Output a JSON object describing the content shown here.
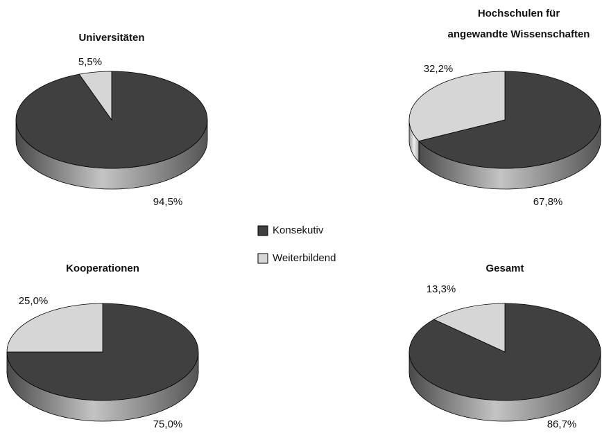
{
  "chart_data": [
    {
      "type": "pie",
      "title": "Universitäten",
      "categories": [
        "Konsekutiv",
        "Weiterbildend"
      ],
      "values": [
        94.5,
        5.5
      ],
      "value_labels": [
        "94,5%",
        "5,5%"
      ],
      "colors": [
        "#404040",
        "#d6d6d6"
      ]
    },
    {
      "type": "pie",
      "title": "Hochschulen für angewandte Wissenschaften",
      "categories": [
        "Konsekutiv",
        "Weiterbildend"
      ],
      "values": [
        67.8,
        32.2
      ],
      "value_labels": [
        "67,8%",
        "32,2%"
      ],
      "colors": [
        "#404040",
        "#d6d6d6"
      ]
    },
    {
      "type": "pie",
      "title": "Kooperationen",
      "categories": [
        "Konsekutiv",
        "Weiterbildend"
      ],
      "values": [
        75.0,
        25.0
      ],
      "value_labels": [
        "75,0%",
        "25,0%"
      ],
      "colors": [
        "#404040",
        "#d6d6d6"
      ]
    },
    {
      "type": "pie",
      "title": "Gesamt",
      "categories": [
        "Konsekutiv",
        "Weiterbildend"
      ],
      "values": [
        86.7,
        13.3
      ],
      "value_labels": [
        "86,7%",
        "13,3%"
      ],
      "colors": [
        "#404040",
        "#d6d6d6"
      ]
    }
  ]
}
